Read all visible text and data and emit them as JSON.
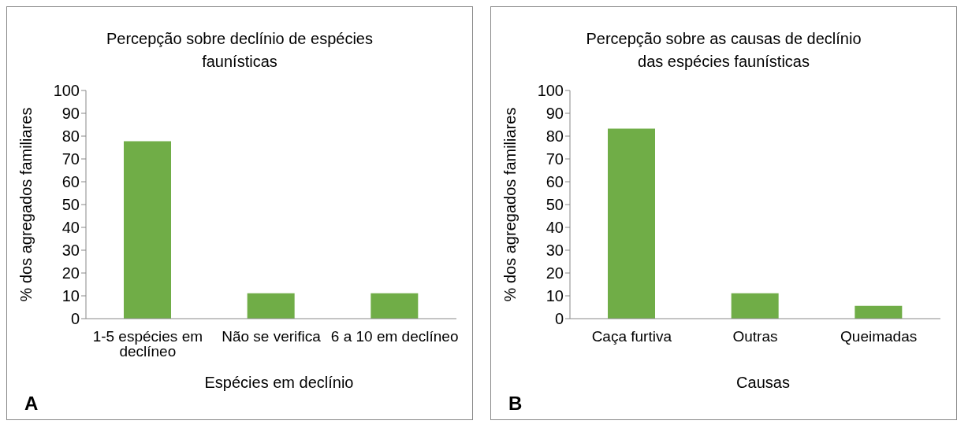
{
  "chart_data": [
    {
      "type": "bar",
      "title": "Percepção sobre declínio de espécies faunísticas",
      "xlabel": "Espécies em declínio",
      "ylabel": "% dos agregados familiares",
      "categories": [
        "1-5 espécies em declíneo",
        "Não se verifica",
        "6 a 10 em declíneo"
      ],
      "values": [
        77.8,
        11.1,
        11.1
      ],
      "color": "#70ad47",
      "ylim": [
        0,
        100
      ],
      "yticks": [
        0,
        10,
        20,
        30,
        40,
        50,
        60,
        70,
        80,
        90,
        100
      ],
      "annotations": [
        "A"
      ]
    },
    {
      "type": "bar",
      "title": "Percepção sobre as causas de declínio das espécies faunísticas",
      "xlabel": "Causas",
      "ylabel": "% dos agregados familiares",
      "categories": [
        "Caça furtiva",
        "Outras",
        "Queimadas"
      ],
      "values": [
        83.3,
        11.1,
        5.6
      ],
      "color": "#70ad47",
      "ylim": [
        0,
        100
      ],
      "yticks": [
        0,
        10,
        20,
        30,
        40,
        50,
        60,
        70,
        80,
        90,
        100
      ],
      "annotations": [
        "B"
      ]
    }
  ]
}
